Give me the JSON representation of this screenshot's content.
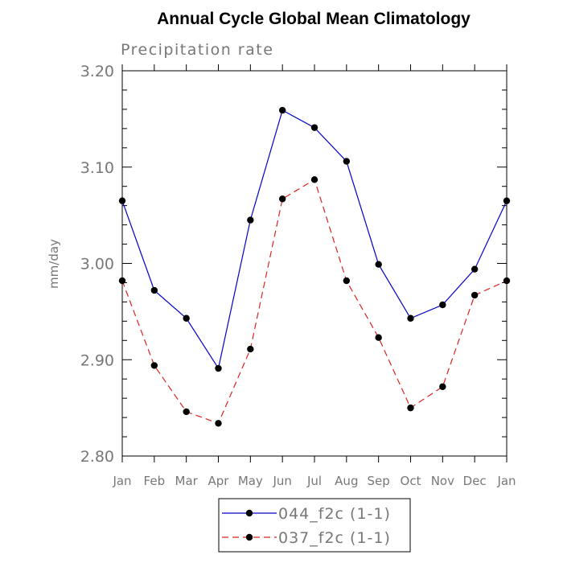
{
  "chart_data": {
    "type": "line",
    "title": "Annual Cycle Global Mean Climatology",
    "subtitle": "Precipitation rate",
    "xlabel": "",
    "ylabel": "mm/day",
    "categories": [
      "Jan",
      "Feb",
      "Mar",
      "Apr",
      "May",
      "Jun",
      "Jul",
      "Aug",
      "Sep",
      "Oct",
      "Nov",
      "Dec",
      "Jan"
    ],
    "ylim": [
      2.8,
      3.2
    ],
    "yticks": [
      "2.80",
      "2.90",
      "3.00",
      "3.10",
      "3.20"
    ],
    "grid": false,
    "legend_position": "bottom-center",
    "series": [
      {
        "name": "044_f2c (1-1)",
        "color": "#0000cc",
        "line_style": "solid",
        "values": [
          3.065,
          2.972,
          2.943,
          2.891,
          3.045,
          3.159,
          3.141,
          3.106,
          2.999,
          2.943,
          2.957,
          2.994,
          3.065
        ]
      },
      {
        "name": "037_f2c (1-1)",
        "color": "#dd2222",
        "line_style": "dashed",
        "values": [
          2.982,
          2.894,
          2.846,
          2.834,
          2.911,
          3.067,
          3.087,
          2.982,
          2.923,
          2.85,
          2.872,
          2.967,
          2.982
        ]
      }
    ]
  }
}
